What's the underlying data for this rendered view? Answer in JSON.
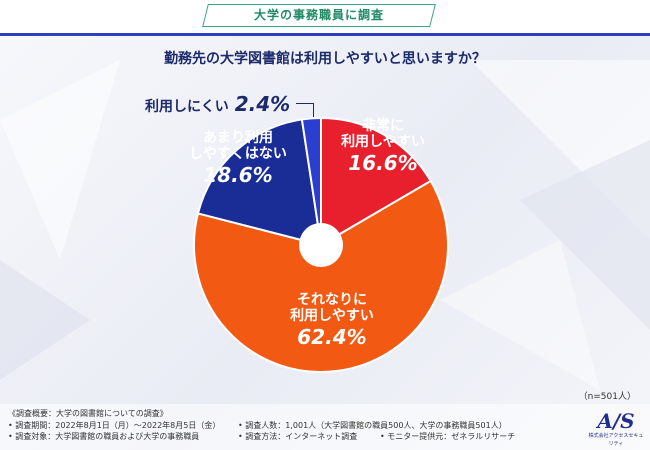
{
  "header": {
    "title": "大学の事務職員に調査"
  },
  "question": "勤務先の大学図書館は利用しやすいと思いますか？",
  "colors": {
    "very_easy": "#e8202e",
    "fairly_easy": "#f25a14",
    "not_very_easy": "#1a2d97",
    "hard": "#2a3ed0",
    "accent_line": "#2d3fbf"
  },
  "chart_data": {
    "type": "pie",
    "donut": true,
    "slices": [
      {
        "label": "非常に利用しやすい",
        "label_lines": [
          "非常に",
          "利用しやすい"
        ],
        "value": 16.6,
        "value_text": "16.6%"
      },
      {
        "label": "それなりに利用しやすい",
        "label_lines": [
          "それなりに",
          "利用しやすい"
        ],
        "value": 62.4,
        "value_text": "62.4%"
      },
      {
        "label": "あまり利用しやすくはない",
        "label_lines": [
          "あまり利用",
          "しやすくはない"
        ],
        "value": 18.6,
        "value_text": "18.6%"
      },
      {
        "label": "利用しにくい",
        "label_lines": [
          "利用しにくい"
        ],
        "value": 2.4,
        "value_text": "2.4%"
      }
    ],
    "start_angle": "12 o'clock",
    "direction": "clockwise",
    "sample_size": "（n=501人）"
  },
  "footer": {
    "row1_col1": "《調査概要：大学の図書館についての調査》",
    "row2_col1": "• 調査期間：2022年8月1日（月）～2022年8月5日（金）",
    "row2_col2": "• 調査人数：1,001人（大学図書館の職員500人、大学の事務職員501人）",
    "row3_col1": "• 調査対象：大学図書館の職員および大学の事務職員",
    "row3_col2": "• 調査方法：インターネット調査",
    "row3_col3": "• モニター提供元：ゼネラルリサーチ"
  },
  "logo": {
    "mark": "A/S",
    "text": "株式会社アクセスセキュリティ"
  }
}
